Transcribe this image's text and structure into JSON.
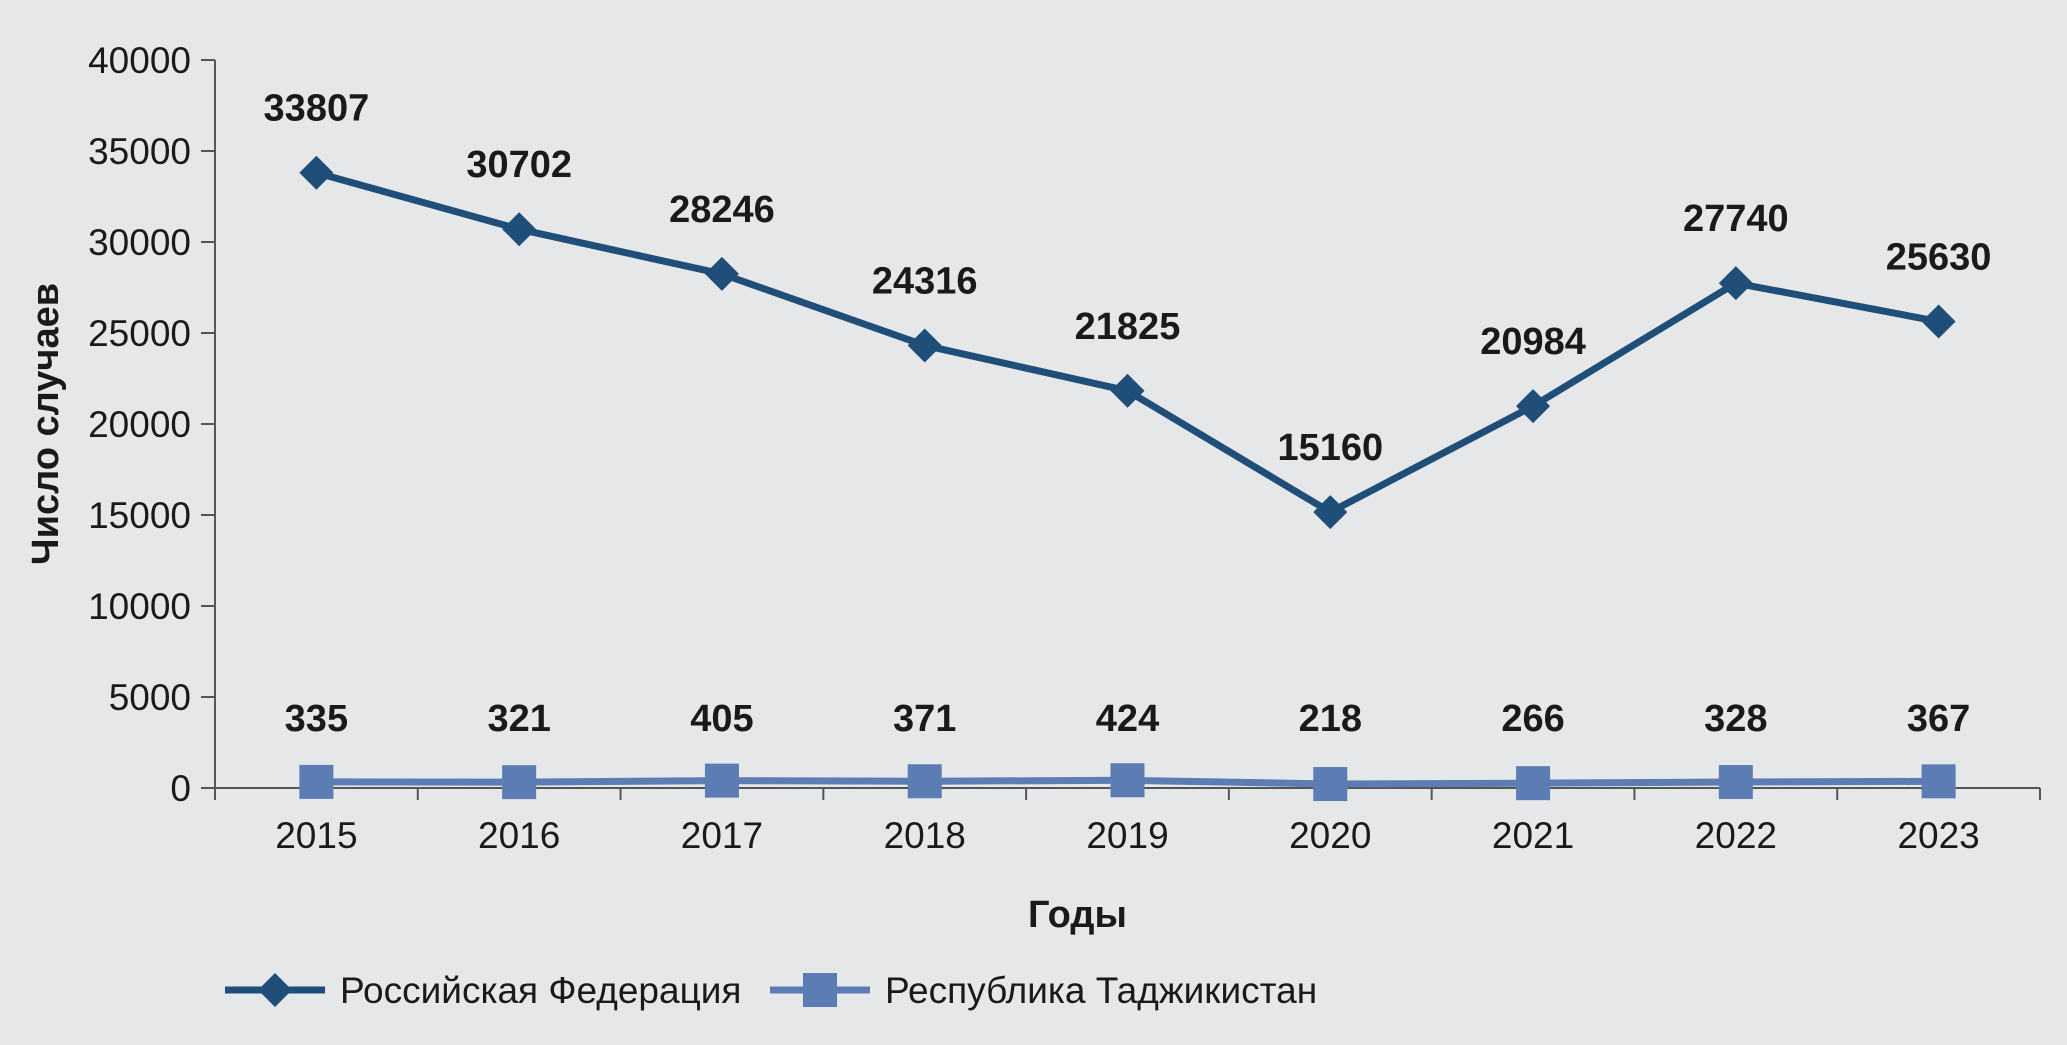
{
  "chart_data": {
    "type": "line",
    "xlabel": "Годы",
    "ylabel": "Число случаев",
    "categories": [
      "2015",
      "2016",
      "2017",
      "2018",
      "2019",
      "2020",
      "2021",
      "2022",
      "2023"
    ],
    "ylim": [
      0,
      40000
    ],
    "yticks": [
      0,
      5000,
      10000,
      15000,
      20000,
      25000,
      30000,
      35000,
      40000
    ],
    "grid": false,
    "legend_position": "bottom-left",
    "series": [
      {
        "name": "Российская Федерация",
        "marker": "diamond",
        "color": "#1f4e79",
        "values": [
          33807,
          30702,
          28246,
          24316,
          21825,
          15160,
          20984,
          27740,
          25630
        ],
        "labels": [
          "33807",
          "30702",
          "28246",
          "24316",
          "21825",
          "15160",
          "20984",
          "27740",
          "25630"
        ]
      },
      {
        "name": "Республика Таджикистан",
        "marker": "square",
        "color": "#5b7db4",
        "values": [
          335,
          321,
          405,
          371,
          424,
          218,
          266,
          328,
          367
        ],
        "labels": [
          "335",
          "321",
          "405",
          "371",
          "424",
          "218",
          "266",
          "328",
          "367"
        ]
      }
    ]
  }
}
